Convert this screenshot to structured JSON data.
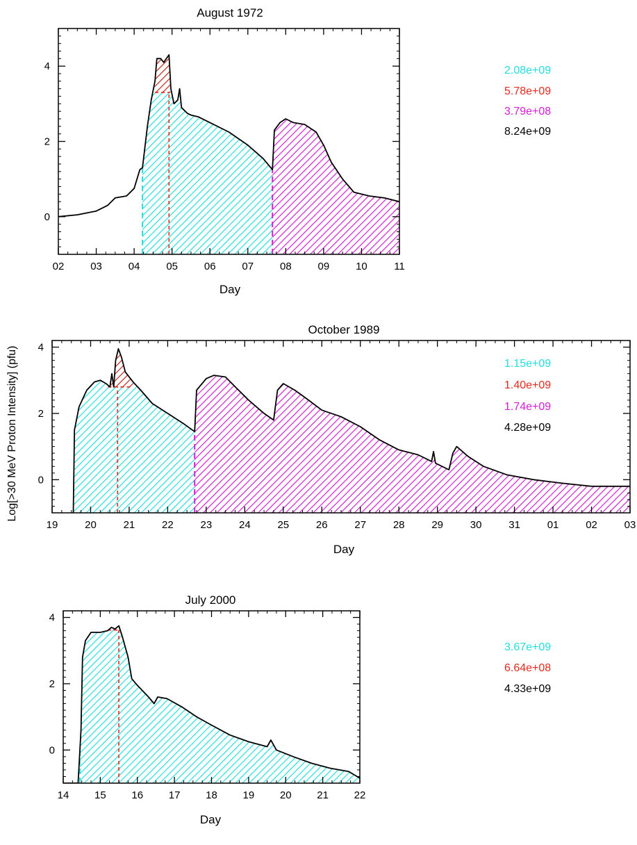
{
  "figure": {
    "shared_ylabel": "Log[>30 MeV Proton Intensity] (pfu)"
  },
  "colors": {
    "cyan": "#22dede",
    "red": "#e8281c",
    "magenta": "#d61cd6",
    "black": "#000000"
  },
  "chart_data": [
    {
      "type": "area",
      "title": "August 1972",
      "xlabel": "Day",
      "ylabel": "",
      "xlim": [
        2,
        11
      ],
      "ylim": [
        -1,
        5
      ],
      "xticks": [
        2,
        3,
        4,
        5,
        6,
        7,
        8,
        9,
        10,
        11
      ],
      "xtick_labels": [
        "02",
        "03",
        "04",
        "05",
        "06",
        "07",
        "08",
        "09",
        "10",
        "11"
      ],
      "yticks": [
        0,
        2,
        4
      ],
      "ytick_labels": [
        "0",
        "2",
        "4"
      ],
      "cyan_range": [
        4.22,
        7.65
      ],
      "red_range": [
        4.55,
        4.95
      ],
      "red_base": 3.3,
      "peak_marker_x": 4.92,
      "magenta_range": [
        7.65,
        11.0
      ],
      "curve": [
        [
          2.0,
          0.0
        ],
        [
          2.5,
          0.05
        ],
        [
          3.0,
          0.15
        ],
        [
          3.3,
          0.3
        ],
        [
          3.5,
          0.5
        ],
        [
          3.8,
          0.55
        ],
        [
          4.0,
          0.75
        ],
        [
          4.15,
          1.25
        ],
        [
          4.22,
          1.3
        ],
        [
          4.35,
          2.4
        ],
        [
          4.45,
          3.1
        ],
        [
          4.55,
          3.6
        ],
        [
          4.6,
          4.2
        ],
        [
          4.7,
          4.2
        ],
        [
          4.78,
          4.1
        ],
        [
          4.85,
          4.2
        ],
        [
          4.92,
          4.3
        ],
        [
          4.97,
          3.4
        ],
        [
          5.05,
          3.0
        ],
        [
          5.15,
          3.1
        ],
        [
          5.2,
          3.4
        ],
        [
          5.25,
          2.9
        ],
        [
          5.4,
          2.75
        ],
        [
          5.5,
          2.7
        ],
        [
          5.7,
          2.65
        ],
        [
          6.0,
          2.5
        ],
        [
          6.5,
          2.25
        ],
        [
          7.0,
          1.9
        ],
        [
          7.4,
          1.55
        ],
        [
          7.65,
          1.25
        ],
        [
          7.7,
          2.3
        ],
        [
          7.85,
          2.5
        ],
        [
          8.0,
          2.6
        ],
        [
          8.2,
          2.5
        ],
        [
          8.5,
          2.45
        ],
        [
          8.8,
          2.25
        ],
        [
          9.0,
          1.9
        ],
        [
          9.2,
          1.45
        ],
        [
          9.5,
          1.0
        ],
        [
          9.8,
          0.65
        ],
        [
          10.2,
          0.55
        ],
        [
          10.6,
          0.5
        ],
        [
          11.0,
          0.4
        ]
      ],
      "legend": [
        {
          "label": "2.08e+09",
          "color": "cyan"
        },
        {
          "label": "5.78e+09",
          "color": "red"
        },
        {
          "label": "3.79e+08",
          "color": "magenta"
        },
        {
          "label": "8.24e+09",
          "color": "black"
        }
      ]
    },
    {
      "type": "area",
      "title": "October 1989",
      "xlabel": "Day",
      "ylabel": "",
      "xlim": [
        0,
        15
      ],
      "ylim": [
        -1,
        4.2
      ],
      "xticks": [
        0,
        1,
        2,
        3,
        4,
        5,
        6,
        7,
        8,
        9,
        10,
        11,
        12,
        13,
        14,
        15
      ],
      "xtick_labels": [
        "19",
        "20",
        "21",
        "22",
        "23",
        "24",
        "25",
        "26",
        "27",
        "28",
        "29",
        "30",
        "31",
        "01",
        "02",
        "03"
      ],
      "yticks": [
        0,
        2,
        4
      ],
      "ytick_labels": [
        "0",
        "2",
        "4"
      ],
      "cyan_range": [
        0.55,
        3.7
      ],
      "red_range": [
        1.45,
        2.1
      ],
      "red_base": 2.8,
      "peak_marker_x": 1.7,
      "magenta_range": [
        3.7,
        15.0
      ],
      "curve": [
        [
          0.55,
          -1.0
        ],
        [
          0.58,
          1.5
        ],
        [
          0.7,
          2.2
        ],
        [
          0.9,
          2.7
        ],
        [
          1.1,
          2.95
        ],
        [
          1.25,
          3.0
        ],
        [
          1.4,
          2.9
        ],
        [
          1.5,
          2.8
        ],
        [
          1.55,
          3.2
        ],
        [
          1.6,
          2.8
        ],
        [
          1.65,
          3.6
        ],
        [
          1.72,
          3.95
        ],
        [
          1.8,
          3.7
        ],
        [
          1.9,
          3.25
        ],
        [
          2.1,
          2.95
        ],
        [
          2.3,
          2.7
        ],
        [
          2.6,
          2.3
        ],
        [
          3.0,
          2.0
        ],
        [
          3.4,
          1.7
        ],
        [
          3.7,
          1.45
        ],
        [
          3.75,
          2.7
        ],
        [
          4.0,
          3.05
        ],
        [
          4.2,
          3.15
        ],
        [
          4.5,
          3.1
        ],
        [
          4.8,
          2.75
        ],
        [
          5.1,
          2.4
        ],
        [
          5.5,
          2.0
        ],
        [
          5.75,
          1.8
        ],
        [
          5.85,
          2.7
        ],
        [
          6.0,
          2.9
        ],
        [
          6.3,
          2.7
        ],
        [
          6.6,
          2.45
        ],
        [
          7.0,
          2.1
        ],
        [
          7.5,
          1.9
        ],
        [
          8.0,
          1.6
        ],
        [
          8.5,
          1.2
        ],
        [
          9.0,
          0.9
        ],
        [
          9.5,
          0.75
        ],
        [
          9.85,
          0.55
        ],
        [
          9.9,
          0.85
        ],
        [
          9.95,
          0.5
        ],
        [
          10.3,
          0.3
        ],
        [
          10.4,
          0.8
        ],
        [
          10.5,
          1.0
        ],
        [
          10.8,
          0.7
        ],
        [
          11.2,
          0.4
        ],
        [
          11.8,
          0.15
        ],
        [
          12.5,
          0.0
        ],
        [
          13.2,
          -0.1
        ],
        [
          14.0,
          -0.2
        ],
        [
          15.0,
          -0.2
        ]
      ],
      "legend": [
        {
          "label": "1.15e+09",
          "color": "cyan"
        },
        {
          "label": "1.40e+09",
          "color": "red"
        },
        {
          "label": "1.74e+09",
          "color": "magenta"
        },
        {
          "label": "4.28e+09",
          "color": "black"
        }
      ]
    },
    {
      "type": "area",
      "title": "July 2000",
      "xlabel": "Day",
      "ylabel": "",
      "xlim": [
        14,
        22
      ],
      "ylim": [
        -1,
        4.2
      ],
      "xticks": [
        14,
        15,
        16,
        17,
        18,
        19,
        20,
        21,
        22
      ],
      "xtick_labels": [
        "14",
        "15",
        "16",
        "17",
        "18",
        "19",
        "20",
        "21",
        "22"
      ],
      "yticks": [
        0,
        2,
        4
      ],
      "ytick_labels": [
        "0",
        "2",
        "4"
      ],
      "cyan_range": [
        14.45,
        22.0
      ],
      "red_range": [
        15.2,
        15.55
      ],
      "red_base": 3.62,
      "peak_marker_x": 15.5,
      "magenta_range": null,
      "curve": [
        [
          14.0,
          -1.0
        ],
        [
          14.4,
          -1.0
        ],
        [
          14.48,
          0.6
        ],
        [
          14.52,
          2.8
        ],
        [
          14.6,
          3.3
        ],
        [
          14.75,
          3.55
        ],
        [
          15.0,
          3.55
        ],
        [
          15.2,
          3.6
        ],
        [
          15.3,
          3.7
        ],
        [
          15.4,
          3.65
        ],
        [
          15.5,
          3.75
        ],
        [
          15.6,
          3.4
        ],
        [
          15.75,
          2.8
        ],
        [
          15.85,
          2.15
        ],
        [
          16.0,
          1.95
        ],
        [
          16.3,
          1.6
        ],
        [
          16.45,
          1.4
        ],
        [
          16.55,
          1.6
        ],
        [
          16.8,
          1.55
        ],
        [
          17.2,
          1.3
        ],
        [
          17.6,
          1.0
        ],
        [
          18.0,
          0.75
        ],
        [
          18.5,
          0.45
        ],
        [
          19.0,
          0.25
        ],
        [
          19.5,
          0.1
        ],
        [
          19.6,
          0.3
        ],
        [
          19.75,
          0.0
        ],
        [
          20.2,
          -0.2
        ],
        [
          20.7,
          -0.4
        ],
        [
          21.2,
          -0.55
        ],
        [
          21.7,
          -0.65
        ],
        [
          22.0,
          -0.85
        ]
      ],
      "legend": [
        {
          "label": "3.67e+09",
          "color": "cyan"
        },
        {
          "label": "6.64e+08",
          "color": "red"
        },
        {
          "label": "4.33e+09",
          "color": "black"
        }
      ]
    }
  ]
}
